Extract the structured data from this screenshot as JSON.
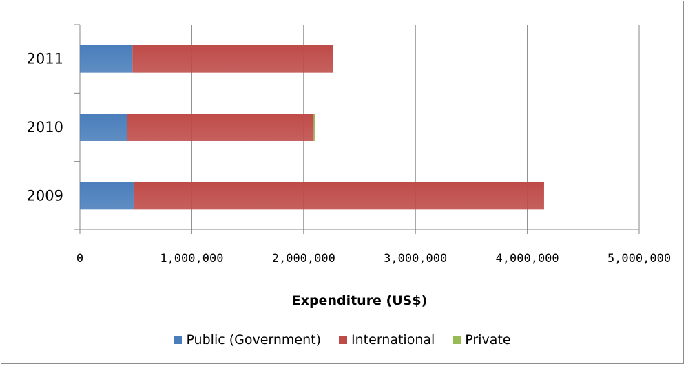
{
  "chart_data": {
    "type": "bar",
    "orientation": "horizontal",
    "stacked": true,
    "categories": [
      "2011",
      "2010",
      "2009"
    ],
    "series": [
      {
        "name": "Public (Government)",
        "color": "#4a7ebb",
        "values": [
          470000,
          420000,
          480000
        ]
      },
      {
        "name": "International",
        "color": "#be4b48",
        "values": [
          1790000,
          1670000,
          3670000
        ]
      },
      {
        "name": "Private",
        "color": "#98b954",
        "values": [
          0,
          10000,
          0
        ]
      }
    ],
    "xlabel": "Expenditure (US$)",
    "ylabel": "",
    "title": "",
    "xlim": [
      0,
      5000000
    ],
    "xticks": [
      0,
      1000000,
      2000000,
      3000000,
      4000000,
      5000000
    ],
    "xtick_labels": [
      "0",
      "1,000,000",
      "2,000,000",
      "3,000,000",
      "4,000,000",
      "5,000,000"
    ],
    "grid": "vertical",
    "legend_position": "bottom"
  }
}
